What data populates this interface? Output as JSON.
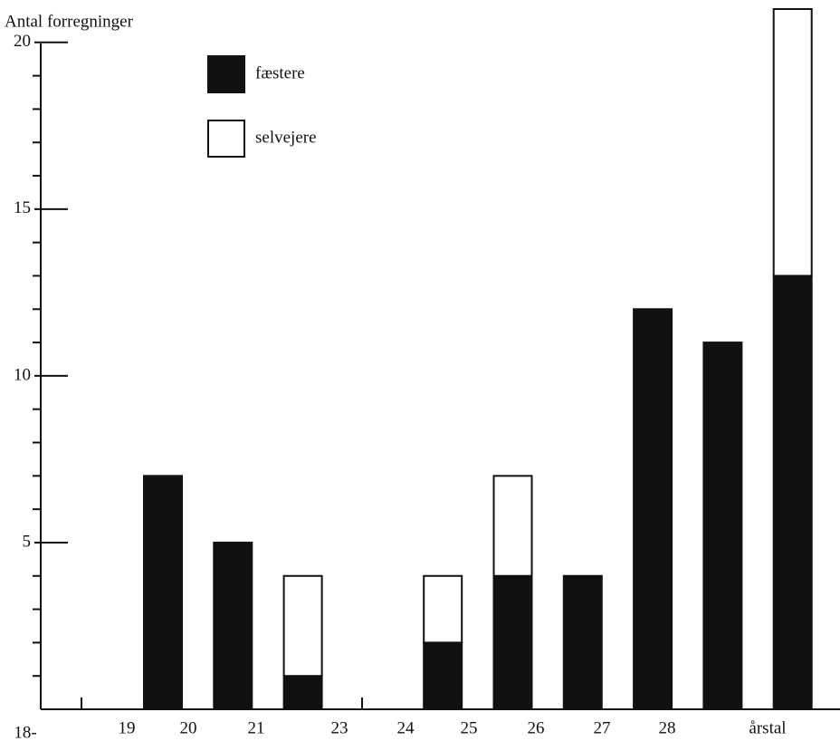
{
  "chart_data": {
    "type": "stacked_bar",
    "title": "Antal forregninger",
    "x_labels": [
      "18-",
      "19",
      "20",
      "21",
      "23",
      "24",
      "25",
      "26",
      "27",
      "28",
      "årstal"
    ],
    "categories": [
      null,
      null,
      null,
      null,
      null,
      null,
      null,
      null,
      null,
      null
    ],
    "series": [
      {
        "name": "fæstere",
        "color": "#111111",
        "values": [
          7,
          5,
          1,
          0,
          2,
          4,
          4,
          12,
          11,
          13
        ]
      },
      {
        "name": "selvejere",
        "color": "#ffffff",
        "values": [
          0,
          0,
          3,
          0,
          2,
          3,
          0,
          0,
          0,
          8
        ]
      }
    ],
    "ylim": [
      0,
      21
    ],
    "yticks": [
      5,
      10,
      15,
      20
    ],
    "yticks_minor": [
      1,
      2,
      3,
      4,
      6,
      7,
      8,
      9,
      11,
      12,
      13,
      14,
      16,
      17,
      18,
      19
    ],
    "legend": "top-left"
  }
}
